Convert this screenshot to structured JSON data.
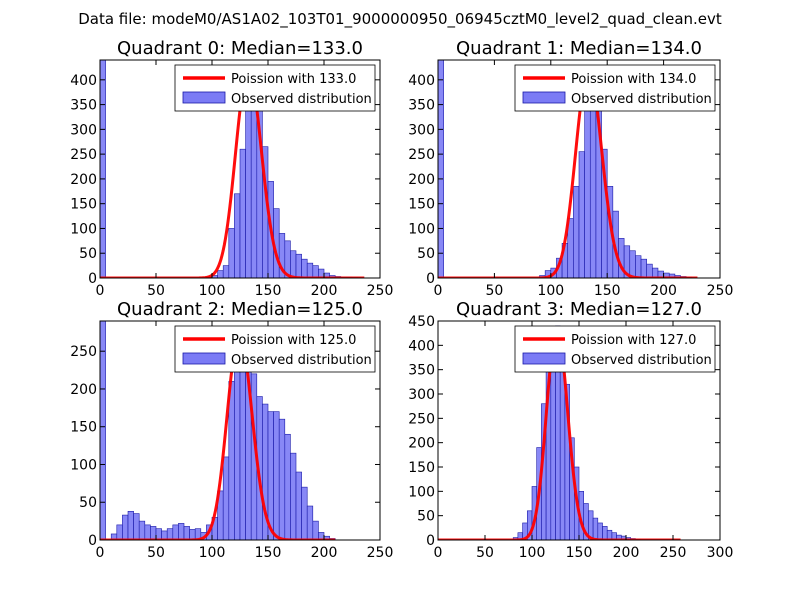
{
  "suptitle": "Data file: modeM0/AS1A02_103T01_9000000950_06945cztM0_level2_quad_clean.evt",
  "colors": {
    "bar_fill": "#7b7bf5",
    "bar_edge": "#1a1aa8",
    "poisson_line": "#ff0000",
    "background": "#ffffff",
    "axis": "#000000"
  },
  "chart_data": [
    {
      "type": "bar",
      "title": "Quadrant 0: Median=133.0",
      "xlim": [
        0,
        250
      ],
      "ylim": [
        0,
        440
      ],
      "xticks": [
        0,
        50,
        100,
        150,
        200,
        250
      ],
      "yticks": [
        0,
        50,
        100,
        150,
        200,
        250,
        300,
        350,
        400
      ],
      "bin_width": 5,
      "bins": [
        [
          0,
          440
        ],
        [
          95,
          2
        ],
        [
          100,
          5
        ],
        [
          105,
          15
        ],
        [
          110,
          25
        ],
        [
          115,
          100
        ],
        [
          120,
          170
        ],
        [
          125,
          260
        ],
        [
          130,
          350
        ],
        [
          135,
          410
        ],
        [
          140,
          380
        ],
        [
          145,
          265
        ],
        [
          150,
          195
        ],
        [
          155,
          140
        ],
        [
          160,
          90
        ],
        [
          165,
          75
        ],
        [
          170,
          55
        ],
        [
          175,
          48
        ],
        [
          180,
          38
        ],
        [
          185,
          30
        ],
        [
          190,
          25
        ],
        [
          195,
          18
        ],
        [
          200,
          10
        ],
        [
          205,
          5
        ],
        [
          210,
          3
        ],
        [
          215,
          2
        ],
        [
          220,
          2
        ],
        [
          225,
          1
        ]
      ],
      "poisson": {
        "mu": 133.0,
        "peak": 420,
        "x_range": [
          0,
          236
        ]
      },
      "legend": {
        "line_label": "Poission with 133.0",
        "bar_label": "Observed distribution",
        "loc": "upper right"
      }
    },
    {
      "type": "bar",
      "title": "Quadrant 1: Median=134.0",
      "xlim": [
        0,
        250
      ],
      "ylim": [
        0,
        440
      ],
      "xticks": [
        0,
        50,
        100,
        150,
        200,
        250
      ],
      "yticks": [
        0,
        50,
        100,
        150,
        200,
        250,
        300,
        350,
        400
      ],
      "bin_width": 5,
      "bins": [
        [
          0,
          440
        ],
        [
          90,
          5
        ],
        [
          95,
          15
        ],
        [
          100,
          20
        ],
        [
          105,
          40
        ],
        [
          110,
          70
        ],
        [
          115,
          120
        ],
        [
          120,
          185
        ],
        [
          125,
          255
        ],
        [
          130,
          345
        ],
        [
          135,
          420
        ],
        [
          140,
          380
        ],
        [
          145,
          260
        ],
        [
          150,
          185
        ],
        [
          155,
          135
        ],
        [
          160,
          80
        ],
        [
          165,
          65
        ],
        [
          170,
          55
        ],
        [
          175,
          45
        ],
        [
          180,
          38
        ],
        [
          185,
          28
        ],
        [
          190,
          20
        ],
        [
          195,
          14
        ],
        [
          200,
          10
        ],
        [
          205,
          8
        ],
        [
          210,
          5
        ],
        [
          215,
          3
        ],
        [
          220,
          2
        ]
      ],
      "poisson": {
        "mu": 134.0,
        "peak": 420,
        "x_range": [
          0,
          230
        ]
      },
      "legend": {
        "line_label": "Poission with 134.0",
        "bar_label": "Observed distribution",
        "loc": "upper right"
      }
    },
    {
      "type": "bar",
      "title": "Quadrant 2: Median=125.0",
      "xlim": [
        0,
        250
      ],
      "ylim": [
        0,
        290
      ],
      "xticks": [
        0,
        50,
        100,
        150,
        200,
        250
      ],
      "yticks": [
        0,
        50,
        100,
        150,
        200,
        250
      ],
      "bin_width": 5,
      "bins": [
        [
          0,
          290
        ],
        [
          10,
          8
        ],
        [
          15,
          20
        ],
        [
          20,
          33
        ],
        [
          25,
          38
        ],
        [
          30,
          35
        ],
        [
          35,
          25
        ],
        [
          40,
          20
        ],
        [
          45,
          18
        ],
        [
          50,
          15
        ],
        [
          55,
          12
        ],
        [
          60,
          15
        ],
        [
          65,
          20
        ],
        [
          70,
          22
        ],
        [
          75,
          18
        ],
        [
          80,
          14
        ],
        [
          85,
          15
        ],
        [
          90,
          10
        ],
        [
          95,
          20
        ],
        [
          100,
          30
        ],
        [
          105,
          65
        ],
        [
          110,
          110
        ],
        [
          115,
          210
        ],
        [
          120,
          245
        ],
        [
          125,
          280
        ],
        [
          130,
          275
        ],
        [
          135,
          220
        ],
        [
          140,
          190
        ],
        [
          145,
          180
        ],
        [
          150,
          170
        ],
        [
          155,
          170
        ],
        [
          160,
          160
        ],
        [
          165,
          140
        ],
        [
          170,
          115
        ],
        [
          175,
          90
        ],
        [
          180,
          70
        ],
        [
          185,
          45
        ],
        [
          190,
          25
        ],
        [
          195,
          10
        ],
        [
          200,
          5
        ],
        [
          205,
          2
        ]
      ],
      "poisson": {
        "mu": 125.0,
        "peak": 272,
        "x_range": [
          0,
          210
        ]
      },
      "legend": {
        "line_label": "Poission with 125.0",
        "bar_label": "Observed distribution",
        "loc": "upper right"
      }
    },
    {
      "type": "bar",
      "title": "Quadrant 3: Median=127.0",
      "xlim": [
        0,
        300
      ],
      "ylim": [
        0,
        450
      ],
      "xticks": [
        0,
        50,
        100,
        150,
        200,
        250,
        300
      ],
      "yticks": [
        0,
        50,
        100,
        150,
        200,
        250,
        300,
        350,
        400,
        450
      ],
      "bin_width": 5,
      "bins": [
        [
          80,
          5
        ],
        [
          85,
          15
        ],
        [
          90,
          35
        ],
        [
          95,
          60
        ],
        [
          100,
          110
        ],
        [
          105,
          190
        ],
        [
          110,
          280
        ],
        [
          115,
          360
        ],
        [
          120,
          400
        ],
        [
          125,
          440
        ],
        [
          130,
          430
        ],
        [
          135,
          320
        ],
        [
          140,
          210
        ],
        [
          145,
          150
        ],
        [
          150,
          100
        ],
        [
          155,
          75
        ],
        [
          160,
          60
        ],
        [
          165,
          45
        ],
        [
          170,
          35
        ],
        [
          175,
          28
        ],
        [
          180,
          20
        ],
        [
          185,
          15
        ],
        [
          190,
          10
        ],
        [
          195,
          8
        ],
        [
          200,
          5
        ],
        [
          205,
          3
        ],
        [
          210,
          2
        ]
      ],
      "poisson": {
        "mu": 127.0,
        "peak": 435,
        "x_range": [
          0,
          258
        ]
      },
      "legend": {
        "line_label": "Poission with 127.0",
        "bar_label": "Observed distribution",
        "loc": "upper right"
      }
    }
  ]
}
